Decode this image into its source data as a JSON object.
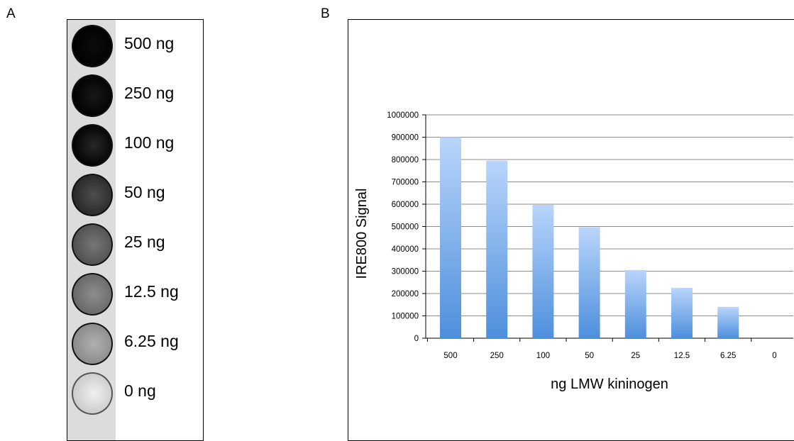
{
  "panel_a": {
    "label": "A",
    "wells": [
      {
        "label": "500 ng",
        "intensity": 1.0
      },
      {
        "label": "250 ng",
        "intensity": 0.95
      },
      {
        "label": "100 ng",
        "intensity": 0.88
      },
      {
        "label": "50 ng",
        "intensity": 0.72
      },
      {
        "label": "25 ng",
        "intensity": 0.55
      },
      {
        "label": "12.5 ng",
        "intensity": 0.45
      },
      {
        "label": "6.25 ng",
        "intensity": 0.3
      },
      {
        "label": "0 ng",
        "intensity": 0.03
      }
    ]
  },
  "panel_b": {
    "label": "B"
  },
  "chart_data": {
    "type": "bar",
    "title": "",
    "xlabel": "ng LMW kininogen",
    "ylabel": "IRE800 Signal",
    "categories": [
      "500",
      "250",
      "100",
      "50",
      "25",
      "12.5",
      "6.25",
      "0"
    ],
    "values": [
      900000,
      795000,
      597000,
      497000,
      305000,
      225000,
      140000,
      0
    ],
    "ylim": [
      0,
      1000000
    ],
    "yticks": [
      0,
      100000,
      200000,
      300000,
      400000,
      500000,
      600000,
      700000,
      800000,
      900000,
      1000000
    ],
    "grid": true,
    "colors": {
      "bar_top": "#b9d5fb",
      "bar_bottom": "#4e8fdc",
      "grid": "#8c8c8c"
    }
  }
}
